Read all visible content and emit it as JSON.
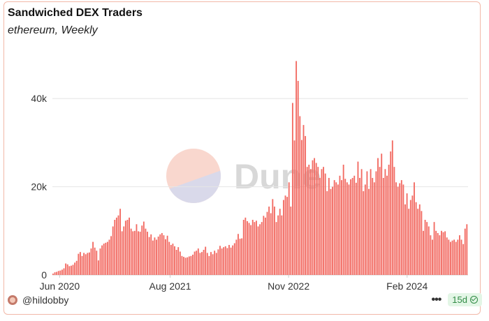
{
  "header": {
    "title": "Sandwiched DEX Traders",
    "subtitle": "ethereum, Weekly"
  },
  "watermark": "Dune",
  "footer": {
    "user": "@hildobby",
    "refresh": "15d",
    "menu_icon": "more-dots-icon"
  },
  "colors": {
    "bar": "#f26b63",
    "grid": "#e6e6e6",
    "accent": "#2f8a43"
  },
  "chart_data": {
    "type": "bar",
    "title": "Sandwiched DEX Traders",
    "subtitle": "ethereum, Weekly",
    "xlabel": "",
    "ylabel": "",
    "ylim": [
      0,
      50000
    ],
    "grid": true,
    "legend": "none",
    "x_start": "2020-05-04",
    "x_interval": "weekly",
    "x_ticks": [
      "Jun 2020",
      "Aug 2021",
      "Nov 2022",
      "Feb 2024"
    ],
    "y_ticks": [
      "0",
      "20k",
      "40k"
    ],
    "y_tick_values": [
      0,
      20000,
      40000
    ],
    "values": [
      300,
      600,
      700,
      900,
      1000,
      1200,
      1500,
      2600,
      2400,
      2000,
      2100,
      2300,
      2800,
      3200,
      4800,
      5200,
      4300,
      5000,
      4700,
      5000,
      5100,
      6000,
      7500,
      6200,
      5500,
      3300,
      6000,
      6700,
      7100,
      7300,
      7500,
      8000,
      8800,
      11000,
      12500,
      13000,
      13500,
      15000,
      9900,
      11000,
      12300,
      12500,
      13000,
      10500,
      9900,
      10000,
      11500,
      9900,
      9800,
      11200,
      12100,
      10500,
      9800,
      8600,
      9200,
      7800,
      8500,
      8000,
      8700,
      9200,
      9500,
      9000,
      8100,
      8900,
      7500,
      6800,
      7100,
      6500,
      5700,
      6300,
      5300,
      4300,
      4100,
      3900,
      4000,
      4200,
      4300,
      4600,
      5300,
      5500,
      6000,
      5000,
      5200,
      5700,
      6400,
      5000,
      4300,
      5200,
      4700,
      5500,
      5000,
      5800,
      6600,
      6000,
      6300,
      6500,
      6100,
      6800,
      6200,
      6700,
      7200,
      8000,
      9300,
      8200,
      8300,
      12500,
      13000,
      12200,
      11800,
      11300,
      12500,
      12000,
      12300,
      11000,
      11500,
      12000,
      13400,
      13000,
      14300,
      15500,
      14000,
      17200,
      15500,
      12000,
      13500,
      15000,
      13500,
      17000,
      18000,
      17700,
      21000,
      15500,
      39000,
      30500,
      48500,
      44000,
      36000,
      30600,
      34000,
      31500,
      24500,
      25000,
      24000,
      26000,
      26500,
      25400,
      24500,
      22000,
      24000,
      24500,
      23000,
      19000,
      22000,
      19500,
      20000,
      21500,
      21000,
      20500,
      22500,
      21500,
      25000,
      21800,
      21000,
      20500,
      21700,
      22000,
      22500,
      20900,
      25700,
      22000,
      24000,
      19000,
      20500,
      23500,
      19500,
      24000,
      22000,
      21000,
      23500,
      26500,
      24500,
      27500,
      22000,
      24000,
      22500,
      25000,
      28000,
      30500,
      24500,
      21000,
      20000,
      20800,
      21500,
      20500,
      16000,
      18500,
      15000,
      17000,
      18000,
      21000,
      16500,
      15000,
      16000,
      14500,
      10000,
      12500,
      12000,
      11000,
      9000,
      8000,
      12000,
      10000,
      9500,
      9000,
      10000,
      9700,
      9900,
      8500,
      8000,
      7500,
      7800,
      8000,
      7500,
      8000,
      9000,
      8000,
      7000,
      10500,
      11500
    ]
  }
}
